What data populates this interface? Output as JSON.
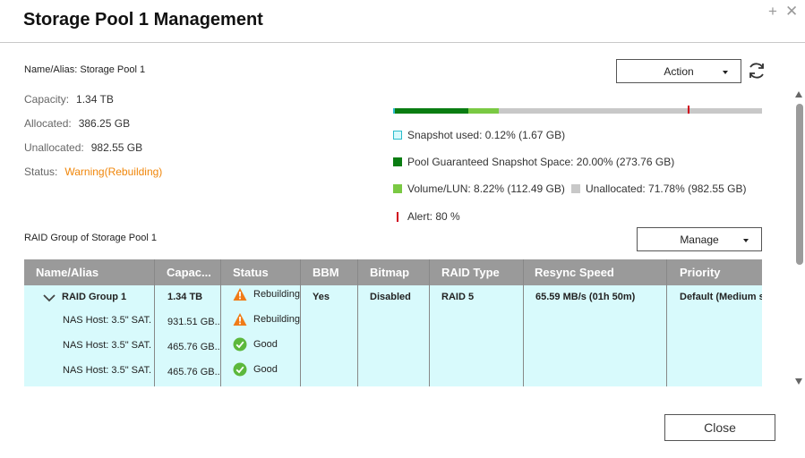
{
  "window": {
    "title": "Storage Pool 1 Management",
    "plus_glyph": "+",
    "close_glyph": "✕"
  },
  "pool": {
    "name_alias": "Name/Alias: Storage Pool 1",
    "capacity_label": "Capacity:",
    "capacity_value": "1.34 TB",
    "allocated_label": "Allocated:",
    "allocated_value": "386.25 GB",
    "unallocated_label": "Unallocated:",
    "unallocated_value": "982.55 GB",
    "status_label": "Status:",
    "status_value": "Warning(Rebuilding)"
  },
  "actions": {
    "action_label": "Action",
    "manage_label": "Manage",
    "close_label": "Close"
  },
  "usage": {
    "snapshot_used_pct": 0.12,
    "guaranteed_snapshot_pct": 20.0,
    "volume_lun_pct": 8.22,
    "unallocated_pct": 71.78,
    "alert_pct": 80,
    "legend": {
      "snapshot_used": "Snapshot used: 0.12% (1.67 GB)",
      "guaranteed": "Pool Guaranteed Snapshot Space: 20.00% (273.76 GB)",
      "volume_lun": "Volume/LUN: 8.22% (112.49 GB)",
      "unallocated": "Unallocated: 71.78% (982.55 GB)",
      "alert": "Alert: 80 %"
    },
    "colors": {
      "snapshot_used": "#d8fafc",
      "guaranteed": "#0a7d12",
      "volume_lun": "#7ac943",
      "unallocated": "#c8c8c8",
      "alert": "#d0021b"
    }
  },
  "raid": {
    "section_label": "RAID Group of Storage Pool 1",
    "columns": [
      "Name/Alias",
      "Capac...",
      "Status",
      "BBM",
      "Bitmap",
      "RAID Type",
      "Resync Speed",
      "Priority"
    ],
    "group": {
      "name": "RAID Group 1",
      "capacity": "1.34 TB",
      "status": "Rebuilding",
      "status_icon": "warning-icon",
      "bbm": "Yes",
      "bitmap": "Disabled",
      "raid_type": "RAID 5",
      "resync_speed": "65.59 MB/s (01h 50m)",
      "priority": "Default (Medium s"
    },
    "disks": [
      {
        "name": "NAS Host: 3.5\" SAT...",
        "capacity": "931.51 GB...",
        "status": "Rebuilding",
        "status_icon": "warning-icon"
      },
      {
        "name": "NAS Host: 3.5\" SAT...",
        "capacity": "465.76 GB...",
        "status": "Good",
        "status_icon": "check-icon"
      },
      {
        "name": "NAS Host: 3.5\" SAT...",
        "capacity": "465.76 GB...",
        "status": "Good",
        "status_icon": "check-icon"
      }
    ]
  }
}
